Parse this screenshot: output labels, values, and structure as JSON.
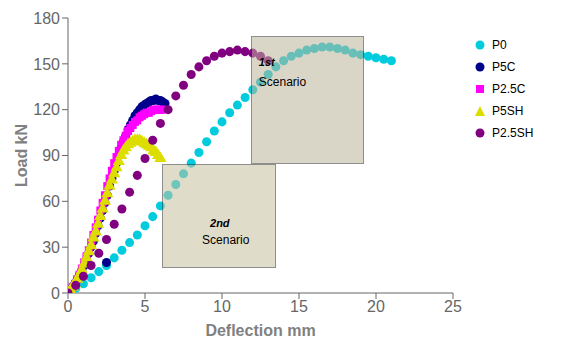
{
  "chart_data": {
    "type": "scatter",
    "xlabel": "Deflection mm",
    "ylabel": "Load  kN",
    "xlim": [
      0,
      25
    ],
    "ylim": [
      0,
      180
    ],
    "xticks": [
      0,
      5,
      10,
      15,
      20,
      25
    ],
    "yticks": [
      0,
      30,
      60,
      90,
      120,
      150,
      180
    ],
    "grid": false,
    "legend": "right",
    "series": [
      {
        "name": "P0",
        "color": "#00CCDD",
        "marker": "circle",
        "x": [
          0,
          0.5,
          1,
          1.5,
          2,
          2.5,
          3,
          3.5,
          4,
          4.5,
          5,
          5.5,
          6,
          6.5,
          7,
          7.5,
          8,
          8.5,
          9,
          9.5,
          10,
          10.5,
          11,
          11.5,
          12,
          12.5,
          13,
          13.5,
          14,
          14.5,
          15,
          15.5,
          16,
          16.5,
          17,
          17.5,
          18,
          18.5,
          19,
          19.5,
          20,
          20.5,
          21
        ],
        "values": [
          0,
          3,
          6,
          10,
          14,
          18,
          23,
          28,
          33,
          38,
          44,
          50,
          57,
          64,
          71,
          78,
          85,
          92,
          99,
          106,
          112,
          118,
          123,
          128,
          133,
          138,
          143,
          148,
          152,
          155,
          157,
          159,
          160,
          161,
          161,
          160,
          159,
          157,
          156,
          155,
          154,
          153,
          152
        ]
      },
      {
        "name": "P5C",
        "color": "#00008B",
        "marker": "circle",
        "x": [
          0,
          0.15,
          0.3,
          0.45,
          0.6,
          0.75,
          0.9,
          1.05,
          1.2,
          1.35,
          1.5,
          1.65,
          1.8,
          1.95,
          2.1,
          2.25,
          2.4,
          2.55,
          2.7,
          2.85,
          3.0,
          3.15,
          3.3,
          3.45,
          3.6,
          3.75,
          3.9,
          4.05,
          4.2,
          4.35,
          4.5,
          4.65,
          4.8,
          4.95,
          5.1,
          5.25,
          5.4,
          5.55,
          5.7,
          5.85,
          6.0,
          6.15,
          6.3,
          2.5
        ],
        "values": [
          0,
          2,
          4,
          6,
          9,
          12,
          15,
          18,
          22,
          26,
          30,
          34,
          39,
          44,
          49,
          54,
          59,
          64,
          70,
          75,
          80,
          85,
          90,
          95,
          99,
          103,
          107,
          110,
          113,
          116,
          118,
          120,
          122,
          123,
          124,
          125,
          126,
          126,
          127,
          126,
          126,
          125,
          124,
          20
        ]
      },
      {
        "name": "P2.5C",
        "color": "#FF00FF",
        "marker": "square",
        "x": [
          0,
          0.15,
          0.3,
          0.45,
          0.6,
          0.75,
          0.9,
          1.05,
          1.2,
          1.35,
          1.5,
          1.65,
          1.8,
          1.95,
          2.1,
          2.25,
          2.4,
          2.55,
          2.7,
          2.85,
          3.0,
          3.15,
          3.3,
          3.45,
          3.6,
          3.75,
          3.9,
          4.05,
          4.2,
          4.35,
          4.5,
          4.65,
          4.8,
          4.95,
          5.1,
          5.25,
          5.4,
          5.55,
          5.7,
          5.85,
          6.0,
          6.1
        ],
        "values": [
          0,
          2,
          4,
          6,
          9,
          12,
          16,
          20,
          24,
          28,
          33,
          38,
          43,
          48,
          54,
          59,
          64,
          70,
          75,
          80,
          85,
          89,
          93,
          97,
          100,
          103,
          106,
          108,
          110,
          112,
          113,
          115,
          116,
          117,
          118,
          118,
          119,
          120,
          120,
          120,
          120,
          120
        ]
      },
      {
        "name": "P5SH",
        "color": "#DDDD00",
        "marker": "triangle",
        "x": [
          0,
          0.15,
          0.3,
          0.45,
          0.6,
          0.75,
          0.9,
          1.05,
          1.2,
          1.35,
          1.5,
          1.65,
          1.8,
          1.95,
          2.1,
          2.25,
          2.4,
          2.55,
          2.7,
          2.85,
          3.0,
          3.15,
          3.3,
          3.45,
          3.6,
          3.75,
          3.9,
          4.05,
          4.2,
          4.35,
          4.5,
          4.65,
          4.8,
          4.95,
          5.1,
          5.25,
          5.4,
          5.55,
          5.7,
          5.85,
          6.0
        ],
        "values": [
          0,
          2,
          4,
          6,
          9,
          12,
          15,
          19,
          23,
          27,
          31,
          36,
          40,
          45,
          50,
          55,
          60,
          65,
          70,
          74,
          78,
          82,
          86,
          90,
          93,
          95,
          97,
          98,
          99,
          100,
          100,
          100,
          99,
          98,
          97,
          96,
          95,
          93,
          92,
          90,
          88
        ]
      },
      {
        "name": "P2.5SH",
        "color": "#800080",
        "marker": "circle",
        "x": [
          0,
          0.5,
          1.0,
          1.5,
          2.0,
          2.5,
          3.0,
          3.5,
          4.0,
          4.5,
          5.0,
          5.5,
          6.0,
          6.5,
          7.0,
          7.5,
          8.0,
          8.5,
          9.0,
          9.5,
          10.0,
          10.5,
          11.0,
          11.5,
          12.0,
          12.5,
          13.0
        ],
        "values": [
          0,
          5,
          11,
          18,
          26,
          35,
          45,
          55,
          66,
          77,
          88,
          100,
          111,
          120,
          129,
          136,
          143,
          148,
          152,
          155,
          157,
          158,
          159,
          158,
          157,
          155,
          152
        ]
      }
    ],
    "annotations": [
      {
        "text": [
          "1st",
          "Scenario"
        ],
        "color": "#BDB59A"
      },
      {
        "text": [
          "2nd",
          "Scenario"
        ],
        "color": "#C8C0A0"
      }
    ]
  }
}
